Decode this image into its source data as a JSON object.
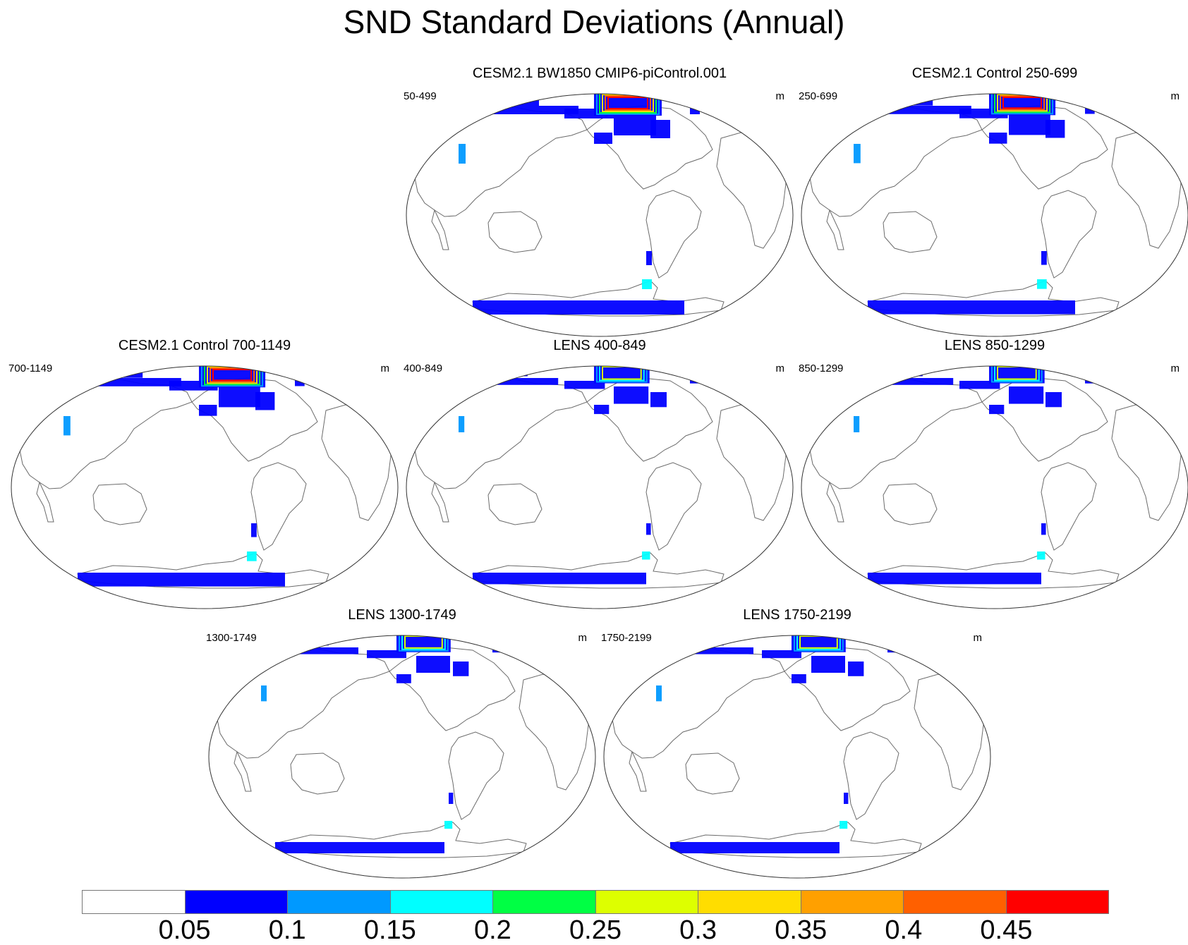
{
  "title": "SND Standard Deviations (Annual)",
  "panels": [
    {
      "title": "CESM2.1 BW1850 CMIP6-piControl.001",
      "left_label": "50-499",
      "units": "m",
      "snow_level": 1.0
    },
    {
      "title": "CESM2.1 Control 250-699",
      "left_label": "250-699",
      "units": "m",
      "snow_level": 0.95
    },
    {
      "title": "CESM2.1 Control 700-1149",
      "left_label": "700-1149",
      "units": "m",
      "snow_level": 0.95
    },
    {
      "title": "LENS 400-849",
      "left_label": "400-849",
      "units": "m",
      "snow_level": 0.55
    },
    {
      "title": "LENS 850-1299",
      "left_label": "850-1299",
      "units": "m",
      "snow_level": 0.55
    },
    {
      "title": "LENS 1300-1749",
      "left_label": "1300-1749",
      "units": "m",
      "snow_level": 0.5
    },
    {
      "title": "LENS 1750-2199",
      "left_label": "1750-2199",
      "units": "m",
      "snow_level": 0.5
    }
  ],
  "colorbar": {
    "labels": [
      "0.05",
      "0.1",
      "0.15",
      "0.2",
      "0.25",
      "0.3",
      "0.35",
      "0.4",
      "0.45"
    ],
    "colors": [
      "#ffffff",
      "#0000ff",
      "#0099ff",
      "#00ffff",
      "#00ff44",
      "#ddff00",
      "#ffdd00",
      "#ffa000",
      "#ff6000",
      "#ff0000"
    ]
  }
}
